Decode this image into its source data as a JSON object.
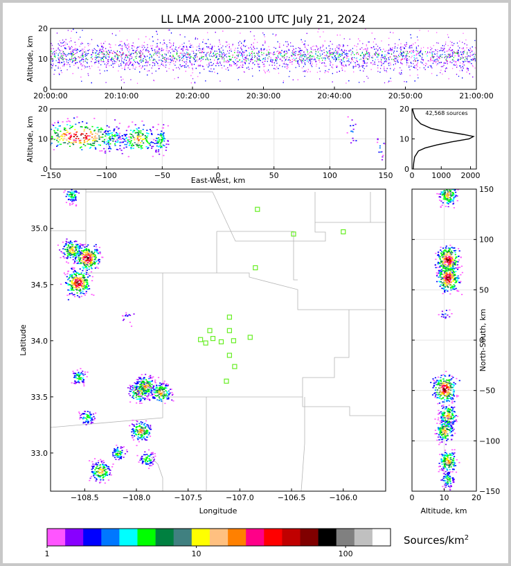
{
  "figure": {
    "title": "LL LMA 2000-2100 UTC July 21, 2024",
    "sources_label": "42,568 sources",
    "colorbar_label": "Sources/km",
    "colorbar_label_sup": "2"
  },
  "colors": {
    "colormap": [
      "#ff55ff",
      "#8800ff",
      "#0000ff",
      "#0077ff",
      "#00ffff",
      "#00ff00",
      "#008040",
      "#408080",
      "#ffff00",
      "#ffc080",
      "#ff8000",
      "#ff0088",
      "#ff0000",
      "#c00000",
      "#800000",
      "#000000",
      "#808080",
      "#c0c0c0",
      "#ffffff"
    ],
    "county_lines": "#b4b4b4",
    "station_marker": "#66ee22"
  },
  "chart_data": [
    {
      "type": "scatter",
      "panel": "time-altitude",
      "title": "LL LMA 2000-2100 UTC July 21, 2024",
      "ylabel": "Altitude, km",
      "ylim": [
        0,
        20
      ],
      "yticks": [
        "0",
        "10",
        "20"
      ],
      "xticks": [
        "20:00:00",
        "20:10:00",
        "20:20:00",
        "20:30:00",
        "20:40:00",
        "20:50:00",
        "21:00:00"
      ],
      "altitude_band_km": [
        5,
        18
      ],
      "peak_altitude_km": 11
    },
    {
      "type": "heatmap",
      "panel": "east-west-altitude",
      "xlabel": "East-West, km",
      "ylabel": "Altitude, km",
      "xlim": [
        -150,
        150
      ],
      "ylim": [
        0,
        20
      ],
      "xticks": [
        "−150",
        "−100",
        "−50",
        "0",
        "50",
        "100",
        "150"
      ],
      "yticks": [
        "0",
        "10",
        "20"
      ],
      "clusters": [
        {
          "x": -125,
          "altitude": 11,
          "width_km": 45,
          "intensity": "high"
        },
        {
          "x": -95,
          "altitude": 10,
          "width_km": 15,
          "intensity": "low"
        },
        {
          "x": -72,
          "altitude": 10,
          "width_km": 20,
          "intensity": "medium"
        },
        {
          "x": -52,
          "altitude": 9.5,
          "width_km": 8,
          "intensity": "low"
        },
        {
          "x": 120,
          "altitude": 12,
          "width_km": 6,
          "intensity": "trace"
        },
        {
          "x": 145,
          "altitude": 7,
          "width_km": 6,
          "intensity": "trace"
        }
      ]
    },
    {
      "type": "line",
      "panel": "altitude-histogram",
      "annotation": "42,568 sources",
      "xlim": [
        0,
        2200
      ],
      "ylim": [
        0,
        20
      ],
      "xticks": [
        "0",
        "1000",
        "2000"
      ],
      "yticks": [
        "0",
        "10",
        "20"
      ],
      "profile": [
        {
          "altitude": 0,
          "count": 40
        },
        {
          "altitude": 2,
          "count": 60
        },
        {
          "altitude": 4,
          "count": 90
        },
        {
          "altitude": 6,
          "count": 220
        },
        {
          "altitude": 7,
          "count": 450
        },
        {
          "altitude": 8,
          "count": 850
        },
        {
          "altitude": 9,
          "count": 1350
        },
        {
          "altitude": 10,
          "count": 1950
        },
        {
          "altitude": 10.8,
          "count": 2100
        },
        {
          "altitude": 11.5,
          "count": 1750
        },
        {
          "altitude": 12.5,
          "count": 1100
        },
        {
          "altitude": 13.5,
          "count": 650
        },
        {
          "altitude": 15,
          "count": 300
        },
        {
          "altitude": 17,
          "count": 110
        },
        {
          "altitude": 19,
          "count": 40
        },
        {
          "altitude": 20,
          "count": 20
        }
      ]
    },
    {
      "type": "heatmap",
      "panel": "plan-view",
      "xlabel": "Longitude",
      "ylabel": "Latitude",
      "xlim": [
        -108.83,
        -105.59
      ],
      "ylim": [
        32.66,
        35.35
      ],
      "xticks": [
        "−108.5",
        "−108.0",
        "−107.5",
        "−107.0",
        "−106.5",
        "−106.0"
      ],
      "yticks": [
        "33.0",
        "33.5",
        "34.0",
        "34.5",
        "35.0"
      ],
      "clusters": [
        {
          "lon": -108.57,
          "lat": 34.52,
          "intensity": "high"
        },
        {
          "lon": -108.48,
          "lat": 34.74,
          "intensity": "high"
        },
        {
          "lon": -108.63,
          "lat": 34.81,
          "intensity": "medium"
        },
        {
          "lon": -108.48,
          "lat": 33.32,
          "intensity": "low"
        },
        {
          "lon": -107.98,
          "lat": 33.55,
          "intensity": "medium"
        },
        {
          "lon": -107.92,
          "lat": 33.6,
          "intensity": "medium"
        },
        {
          "lon": -107.77,
          "lat": 33.54,
          "intensity": "medium"
        },
        {
          "lon": -107.96,
          "lat": 33.2,
          "intensity": "medium"
        },
        {
          "lon": -108.18,
          "lat": 33.0,
          "intensity": "low"
        },
        {
          "lon": -108.35,
          "lat": 32.84,
          "intensity": "medium"
        },
        {
          "lon": -108.56,
          "lat": 33.68,
          "intensity": "low"
        },
        {
          "lon": -108.63,
          "lat": 35.3,
          "intensity": "low"
        },
        {
          "lon": -108.1,
          "lat": 34.21,
          "intensity": "trace"
        },
        {
          "lon": -107.9,
          "lat": 32.95,
          "intensity": "low"
        }
      ],
      "stations": [
        {
          "lon": -106.83,
          "lat": 35.17
        },
        {
          "lon": -106.48,
          "lat": 34.95
        },
        {
          "lon": -106.0,
          "lat": 34.97
        },
        {
          "lon": -106.85,
          "lat": 34.65
        },
        {
          "lon": -107.1,
          "lat": 34.21
        },
        {
          "lon": -107.29,
          "lat": 34.09
        },
        {
          "lon": -107.1,
          "lat": 34.09
        },
        {
          "lon": -107.38,
          "lat": 34.01
        },
        {
          "lon": -107.26,
          "lat": 34.02
        },
        {
          "lon": -107.33,
          "lat": 33.98
        },
        {
          "lon": -107.18,
          "lat": 33.99
        },
        {
          "lon": -107.06,
          "lat": 34.0
        },
        {
          "lon": -106.9,
          "lat": 34.03
        },
        {
          "lon": -107.1,
          "lat": 33.87
        },
        {
          "lon": -107.05,
          "lat": 33.77
        },
        {
          "lon": -107.13,
          "lat": 33.64
        }
      ]
    },
    {
      "type": "heatmap",
      "panel": "altitude-north-south",
      "xlabel": "Altitude, km",
      "ylabel": "North-South, km",
      "xlim": [
        0,
        20
      ],
      "ylim": [
        -150,
        150
      ],
      "xticks": [
        "0",
        "10",
        "20"
      ],
      "yticks": [
        "−150",
        "−100",
        "−50",
        "0",
        "50",
        "100",
        "150"
      ],
      "clusters": [
        {
          "altitude": 11,
          "y": 145,
          "intensity": "medium"
        },
        {
          "altitude": 11,
          "y": 80,
          "intensity": "high"
        },
        {
          "altitude": 11,
          "y": 62,
          "intensity": "high"
        },
        {
          "altitude": 10,
          "y": 27,
          "intensity": "trace"
        },
        {
          "altitude": 10,
          "y": -48,
          "intensity": "high"
        },
        {
          "altitude": 11,
          "y": -75,
          "intensity": "medium"
        },
        {
          "altitude": 10,
          "y": -90,
          "intensity": "medium"
        },
        {
          "altitude": 11,
          "y": -120,
          "intensity": "medium"
        },
        {
          "altitude": 11,
          "y": -138,
          "intensity": "low"
        }
      ]
    },
    {
      "type": "colorbar",
      "panel": "colorbar",
      "label": "Sources/km²",
      "scale": "log",
      "range": [
        1,
        200
      ],
      "ticks": [
        "1",
        "10",
        "100"
      ]
    }
  ]
}
